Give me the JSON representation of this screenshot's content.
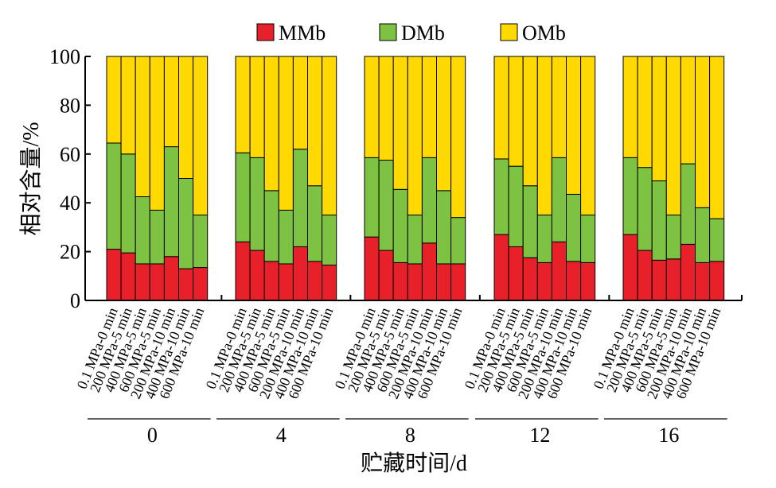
{
  "chart_data": {
    "type": "bar",
    "stacked": true,
    "normalized_percent": true,
    "title": "",
    "xlabel": "贮藏时间/d",
    "ylabel": "相对含量/%",
    "ylim": [
      0,
      100
    ],
    "yticks": [
      0,
      20,
      40,
      60,
      80,
      100
    ],
    "legend_position": "top",
    "grid": false,
    "series": [
      {
        "name": "MMb",
        "color": "#e8202a"
      },
      {
        "name": "DMb",
        "color": "#7dc242"
      },
      {
        "name": "OMb",
        "color": "#ffd900"
      }
    ],
    "categories": [
      "0.1 MPa-0 min",
      "200 MPa-5 min",
      "400 MPa-5 min",
      "600 MPa-5 min",
      "200 MPa-10 min",
      "400 MPa-10 min",
      "600 MPa-10 min"
    ],
    "groups": [
      {
        "label": "0",
        "MMb": [
          21,
          19.5,
          15,
          15,
          18,
          13,
          13.5
        ],
        "DMb": [
          43.5,
          40.5,
          27.5,
          22,
          45,
          37,
          21.5
        ]
      },
      {
        "label": "4",
        "MMb": [
          24,
          20.5,
          16,
          15,
          22,
          16,
          14.5
        ],
        "DMb": [
          36.5,
          38,
          29,
          22,
          40,
          31,
          20.5
        ]
      },
      {
        "label": "8",
        "MMb": [
          26,
          20.5,
          15.5,
          15,
          23.5,
          15,
          15
        ],
        "DMb": [
          32.5,
          37,
          30,
          20,
          35,
          30,
          19
        ]
      },
      {
        "label": "12",
        "MMb": [
          27,
          22,
          17.5,
          15.5,
          24,
          16,
          15.5
        ],
        "DMb": [
          31,
          33,
          29.5,
          19.5,
          34.5,
          27.5,
          19.5
        ]
      },
      {
        "label": "16",
        "MMb": [
          27,
          20.5,
          16.5,
          17,
          23,
          15.5,
          16
        ],
        "DMb": [
          31.5,
          34,
          32.5,
          18,
          33,
          22.5,
          17.5
        ]
      }
    ]
  }
}
